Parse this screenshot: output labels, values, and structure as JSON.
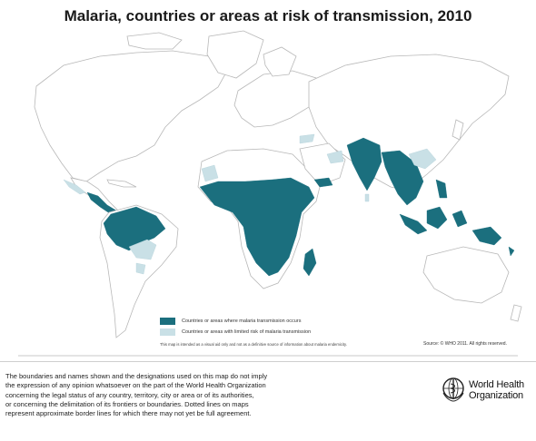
{
  "title": "Malaria, countries or areas at risk of transmission, 2010",
  "legend": {
    "items": [
      {
        "label": "Countries or areas where malaria transmission occurs",
        "color": "#1b6f7e"
      },
      {
        "label": "Countries or areas with limited risk of malaria transmission",
        "color": "#c9e0e6"
      }
    ]
  },
  "map_disclaimer": "This map is intended as a visual aid only and not as a definitive source of information about malaria endemicity.",
  "source": "Source: © WHO 2011. All rights reserved.",
  "footer": {
    "lines": [
      "The boundaries and names shown and the designations used on this map do not imply",
      "the expression of any opinion whatsoever on the part of the World Health Organization",
      "concerning the legal status of any country, territory, city or area or of its authorities,",
      "or concerning the delimitation of its frontiers or boundaries.  Dotted lines on maps",
      "represent approximate border lines for which there may not yet be full agreement."
    ]
  },
  "logo": {
    "line1": "World Health",
    "line2": "Organization"
  }
}
